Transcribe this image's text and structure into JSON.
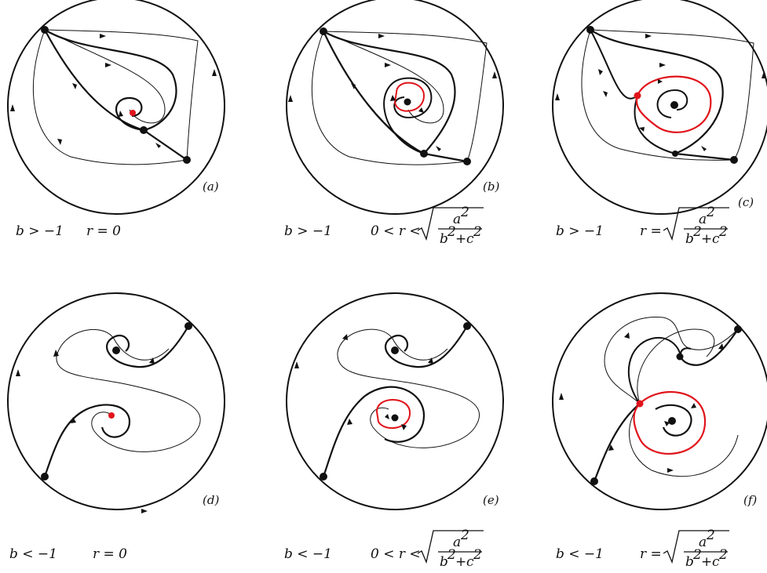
{
  "colors": {
    "ink": "#111111",
    "limit_cycle": "#e0141b",
    "red_point": "#e0141b"
  },
  "panels": [
    {
      "id": "a",
      "label": "(a)",
      "cond_b": "b > −1",
      "cond_r": "r = 0",
      "cond_r_kind": "zero"
    },
    {
      "id": "b",
      "label": "(b)",
      "cond_b": "b > −1",
      "cond_r": "0 < r <",
      "cond_r_kind": "lt"
    },
    {
      "id": "c",
      "label": "(c)",
      "cond_b": "b > −1",
      "cond_r": "r =",
      "cond_r_kind": "eq"
    },
    {
      "id": "d",
      "label": "(d)",
      "cond_b": "b < −1",
      "cond_r": "r = 0",
      "cond_r_kind": "zero"
    },
    {
      "id": "e",
      "label": "(e)",
      "cond_b": "b < −1",
      "cond_r": "0 < r <",
      "cond_r_kind": "lt"
    },
    {
      "id": "f",
      "label": "(f)",
      "cond_b": "b < −1",
      "cond_r": "r =",
      "cond_r_kind": "eq"
    }
  ],
  "sqrt_expr": {
    "numerator": "a",
    "numerator_exp": "2",
    "denominator_b": "b",
    "denominator_c": "c",
    "exp": "2",
    "plus": "+"
  }
}
